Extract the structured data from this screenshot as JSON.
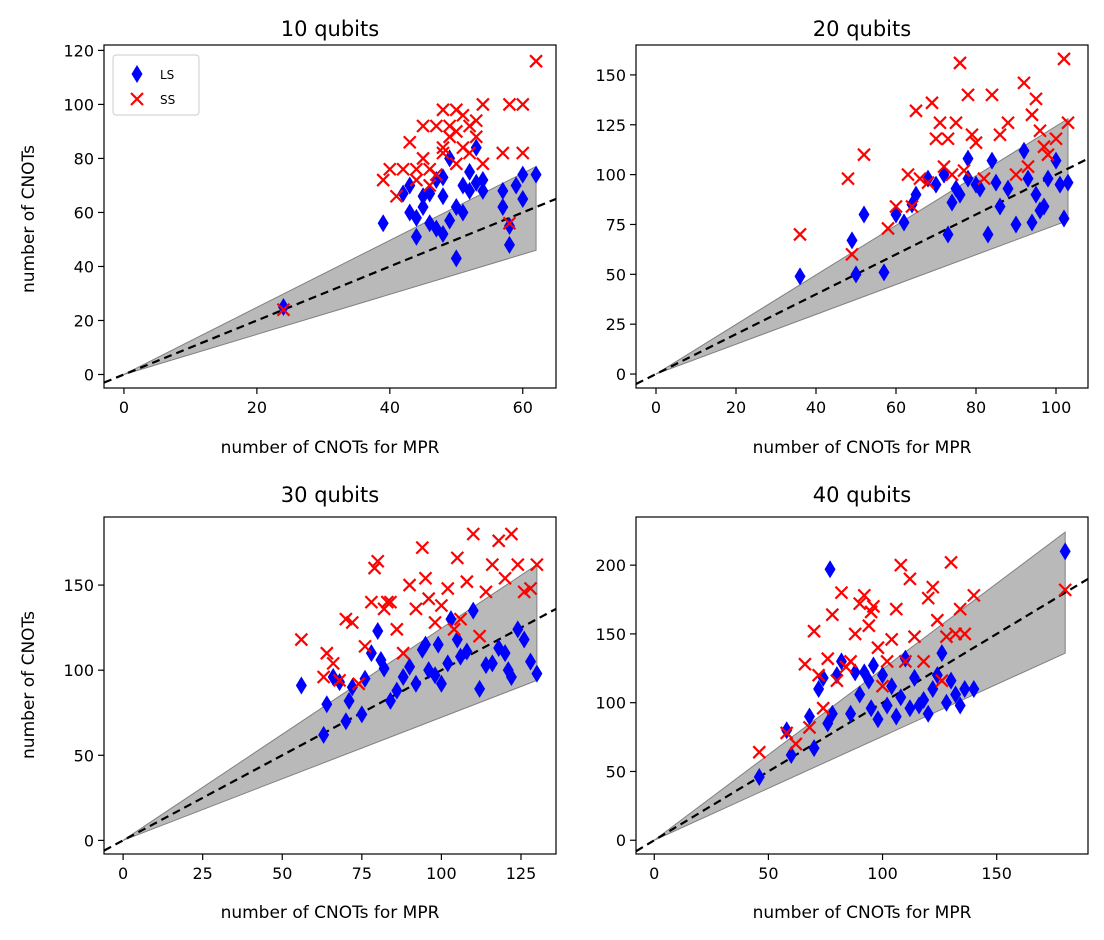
{
  "figure": {
    "legend": {
      "placement": "top-left",
      "entries": [
        {
          "label": "LS",
          "marker": "diamond",
          "color": "#0000ff"
        },
        {
          "label": "SS",
          "marker": "x",
          "color": "#ff0000"
        }
      ]
    },
    "colors": {
      "ls": "#0000ff",
      "ss": "#ff0000",
      "band": "#808080",
      "reference": "#000000"
    }
  },
  "chart_data": [
    {
      "type": "scatter",
      "title": "10 qubits",
      "xlabel": "number of CNOTs for MPR",
      "ylabel": "number of CNOTs",
      "xlim": [
        -3,
        65
      ],
      "ylim": [
        -5,
        122
      ],
      "xticks": [
        0,
        20,
        40,
        60
      ],
      "yticks": [
        0,
        20,
        40,
        60,
        80,
        100,
        120
      ],
      "band": {
        "x": [
          0,
          62
        ],
        "upper": [
          0,
          77
        ],
        "lower": [
          0,
          46
        ]
      },
      "reference_line": {
        "slope": 1,
        "style": "dashed"
      },
      "legend": true,
      "series": [
        {
          "name": "LS",
          "marker": "diamond",
          "x": [
            24,
            39,
            42,
            43,
            43,
            44,
            44,
            45,
            45,
            46,
            46,
            47,
            47,
            48,
            48,
            48,
            49,
            49,
            50,
            50,
            51,
            51,
            52,
            52,
            53,
            53,
            54,
            54,
            57,
            57,
            58,
            58,
            59,
            60,
            60,
            62
          ],
          "y": [
            25,
            56,
            67,
            60,
            70,
            51,
            58,
            62,
            66,
            56,
            67,
            72,
            54,
            52,
            66,
            73,
            80,
            57,
            62,
            43,
            70,
            60,
            68,
            75,
            84,
            71,
            68,
            72,
            62,
            68,
            48,
            55,
            70,
            65,
            74,
            74
          ]
        },
        {
          "name": "SS",
          "marker": "x",
          "x": [
            24,
            39,
            40,
            41,
            42,
            43,
            44,
            44,
            45,
            45,
            46,
            46,
            47,
            47,
            48,
            48,
            48,
            49,
            49,
            50,
            50,
            50,
            51,
            51,
            52,
            52,
            53,
            53,
            54,
            54,
            57,
            58,
            58,
            60,
            60,
            62
          ],
          "y": [
            24,
            72,
            76,
            66,
            76,
            86,
            76,
            72,
            80,
            92,
            70,
            76,
            92,
            74,
            82,
            98,
            84,
            92,
            88,
            98,
            90,
            78,
            96,
            84,
            92,
            82,
            88,
            94,
            100,
            78,
            82,
            100,
            56,
            100,
            82,
            116
          ]
        }
      ]
    },
    {
      "type": "scatter",
      "title": "20 qubits",
      "xlabel": "number of CNOTs for MPR",
      "ylabel": "",
      "xlim": [
        -5,
        108
      ],
      "ylim": [
        -7,
        165
      ],
      "xticks": [
        0,
        20,
        40,
        60,
        80,
        100
      ],
      "yticks": [
        0,
        25,
        50,
        75,
        100,
        125,
        150
      ],
      "band": {
        "x": [
          0,
          103
        ],
        "upper": [
          0,
          128
        ],
        "lower": [
          0,
          77
        ]
      },
      "reference_line": {
        "slope": 1,
        "style": "dashed"
      },
      "legend": false,
      "series": [
        {
          "name": "LS",
          "marker": "diamond",
          "x": [
            36,
            49,
            50,
            52,
            57,
            60,
            62,
            64,
            65,
            68,
            70,
            72,
            73,
            74,
            75,
            76,
            78,
            78,
            80,
            81,
            83,
            84,
            85,
            86,
            88,
            90,
            92,
            93,
            94,
            95,
            96,
            97,
            98,
            100,
            101,
            102,
            103
          ],
          "y": [
            49,
            67,
            50,
            80,
            51,
            80,
            76,
            85,
            90,
            98,
            95,
            100,
            70,
            86,
            93,
            90,
            108,
            98,
            95,
            93,
            70,
            107,
            96,
            84,
            93,
            75,
            112,
            98,
            76,
            90,
            82,
            84,
            98,
            107,
            95,
            78,
            96
          ]
        },
        {
          "name": "SS",
          "marker": "x",
          "x": [
            36,
            48,
            49,
            52,
            58,
            60,
            63,
            64,
            65,
            66,
            68,
            69,
            70,
            71,
            72,
            73,
            74,
            75,
            76,
            77,
            78,
            79,
            80,
            82,
            84,
            86,
            88,
            90,
            92,
            93,
            94,
            95,
            96,
            97,
            98,
            100,
            102,
            103
          ],
          "y": [
            70,
            98,
            60,
            110,
            73,
            84,
            100,
            84,
            132,
            98,
            96,
            136,
            118,
            126,
            104,
            118,
            100,
            126,
            156,
            102,
            140,
            120,
            116,
            98,
            140,
            120,
            126,
            100,
            146,
            104,
            130,
            138,
            122,
            114,
            110,
            118,
            158,
            126
          ]
        }
      ]
    },
    {
      "type": "scatter",
      "title": "30 qubits",
      "xlabel": "number of CNOTs for MPR",
      "ylabel": "number of CNOTs",
      "xlim": [
        -6,
        136
      ],
      "ylim": [
        -8,
        190
      ],
      "xticks": [
        0,
        25,
        50,
        75,
        100,
        125
      ],
      "yticks": [
        0,
        50,
        100,
        150
      ],
      "band": {
        "x": [
          0,
          130
        ],
        "upper": [
          0,
          162
        ],
        "lower": [
          0,
          94
        ]
      },
      "reference_line": {
        "slope": 1,
        "style": "dashed"
      },
      "legend": false,
      "series": [
        {
          "name": "LS",
          "marker": "diamond",
          "x": [
            56,
            63,
            64,
            66,
            68,
            70,
            71,
            72,
            75,
            76,
            78,
            80,
            81,
            82,
            84,
            86,
            88,
            90,
            92,
            94,
            95,
            96,
            98,
            99,
            100,
            102,
            103,
            105,
            106,
            108,
            110,
            112,
            114,
            116,
            118,
            120,
            121,
            122,
            124,
            126,
            128,
            130
          ],
          "y": [
            91,
            62,
            80,
            96,
            93,
            70,
            82,
            90,
            74,
            95,
            110,
            123,
            106,
            101,
            82,
            88,
            96,
            102,
            92,
            112,
            115,
            100,
            97,
            115,
            92,
            104,
            130,
            118,
            108,
            111,
            135,
            89,
            103,
            104,
            113,
            110,
            100,
            96,
            124,
            118,
            105,
            98
          ]
        },
        {
          "name": "SS",
          "marker": "x",
          "x": [
            56,
            63,
            64,
            66,
            68,
            70,
            72,
            74,
            76,
            78,
            79,
            80,
            82,
            83,
            84,
            86,
            88,
            90,
            92,
            94,
            95,
            96,
            98,
            100,
            102,
            104,
            105,
            106,
            108,
            110,
            112,
            114,
            116,
            118,
            120,
            122,
            124,
            126,
            128,
            130
          ],
          "y": [
            118,
            96,
            110,
            104,
            94,
            130,
            128,
            92,
            114,
            140,
            160,
            164,
            136,
            140,
            140,
            124,
            110,
            150,
            136,
            172,
            154,
            142,
            128,
            138,
            148,
            124,
            166,
            130,
            152,
            180,
            120,
            146,
            162,
            176,
            154,
            180,
            162,
            146,
            148,
            162
          ]
        }
      ]
    },
    {
      "type": "scatter",
      "title": "40 qubits",
      "xlabel": "number of CNOTs for MPR",
      "ylabel": "",
      "xlim": [
        -8,
        190
      ],
      "ylim": [
        -10,
        235
      ],
      "xticks": [
        0,
        50,
        100,
        150
      ],
      "yticks": [
        0,
        50,
        100,
        150,
        200
      ],
      "band": {
        "x": [
          0,
          180
        ],
        "upper": [
          0,
          224
        ],
        "lower": [
          0,
          136
        ]
      },
      "reference_line": {
        "slope": 1,
        "style": "dashed"
      },
      "legend": false,
      "series": [
        {
          "name": "LS",
          "marker": "diamond",
          "x": [
            46,
            58,
            60,
            68,
            70,
            72,
            74,
            76,
            77,
            78,
            80,
            82,
            86,
            88,
            90,
            92,
            94,
            95,
            96,
            98,
            100,
            102,
            104,
            106,
            108,
            110,
            112,
            114,
            116,
            118,
            120,
            122,
            124,
            126,
            128,
            130,
            132,
            134,
            136,
            140,
            180
          ],
          "y": [
            46,
            80,
            62,
            90,
            67,
            110,
            118,
            85,
            197,
            92,
            120,
            130,
            92,
            122,
            106,
            122,
            116,
            96,
            127,
            88,
            120,
            98,
            112,
            90,
            104,
            132,
            96,
            118,
            98,
            102,
            92,
            110,
            120,
            136,
            100,
            116,
            106,
            98,
            110,
            110,
            210
          ]
        },
        {
          "name": "SS",
          "marker": "x",
          "x": [
            46,
            58,
            62,
            66,
            68,
            70,
            72,
            74,
            76,
            78,
            80,
            82,
            84,
            86,
            88,
            90,
            92,
            94,
            95,
            96,
            98,
            100,
            102,
            104,
            106,
            108,
            110,
            112,
            114,
            118,
            120,
            122,
            124,
            126,
            128,
            130,
            132,
            134,
            136,
            140,
            180
          ],
          "y": [
            64,
            78,
            70,
            128,
            82,
            152,
            120,
            96,
            132,
            164,
            116,
            180,
            126,
            130,
            150,
            172,
            178,
            156,
            166,
            170,
            140,
            112,
            130,
            146,
            168,
            200,
            130,
            190,
            148,
            130,
            176,
            184,
            160,
            116,
            148,
            202,
            150,
            168,
            150,
            178,
            182
          ]
        }
      ]
    }
  ]
}
